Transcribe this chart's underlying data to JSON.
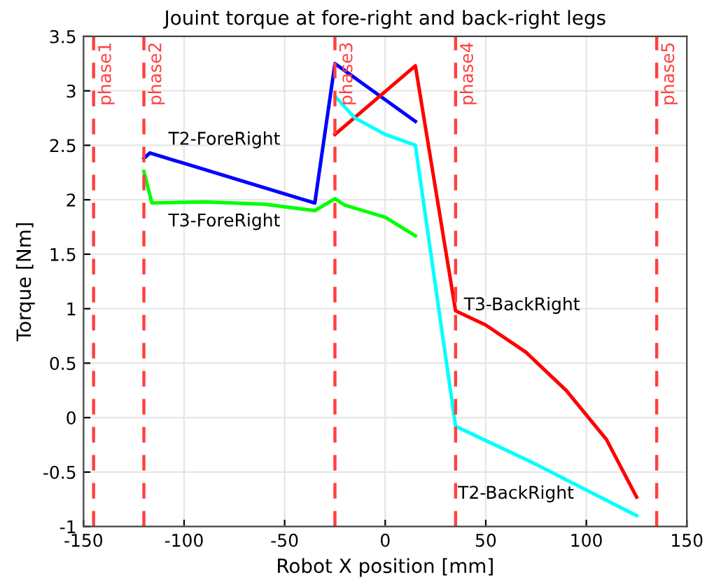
{
  "chart_data": {
    "type": "line",
    "title": "Jouint torque at fore-right and back-right legs",
    "xlabel": "Robot X position [mm]",
    "ylabel": "Torque [Nm]",
    "xlim": [
      -150,
      150
    ],
    "xticks": [
      -150,
      -100,
      -50,
      0,
      50,
      100,
      150
    ],
    "ylim": [
      -1,
      3.5
    ],
    "yticks": [
      -1,
      -0.5,
      0,
      0.5,
      1,
      1.5,
      2,
      2.5,
      3,
      3.5
    ],
    "grid": true,
    "line_style": "solid",
    "marker": "none",
    "series": [
      {
        "name": "T2-ForeRight",
        "color": "#0000ff",
        "x": [
          -120,
          -117,
          -35,
          -25,
          15
        ],
        "values": [
          2.38,
          2.43,
          1.97,
          3.25,
          2.72
        ]
      },
      {
        "name": "T3-ForeRight",
        "color": "#00ff00",
        "x": [
          -120,
          -116,
          -90,
          -60,
          -35,
          -25,
          -20,
          0,
          15
        ],
        "values": [
          2.26,
          1.97,
          1.98,
          1.96,
          1.9,
          2.01,
          1.95,
          1.84,
          1.67
        ]
      },
      {
        "name": "T3-BackRight",
        "color": "#ff0000",
        "x": [
          -25,
          15,
          35,
          50,
          70,
          90,
          110,
          125
        ],
        "values": [
          2.6,
          3.23,
          0.98,
          0.85,
          0.6,
          0.25,
          -0.2,
          -0.73
        ]
      },
      {
        "name": "T2-BackRight",
        "color": "#00ffff",
        "x": [
          -25,
          -15,
          0,
          15,
          35,
          73,
          125
        ],
        "values": [
          2.95,
          2.75,
          2.6,
          2.5,
          -0.08,
          -0.41,
          -0.9
        ]
      }
    ],
    "ref_lines": [
      {
        "axis": "x",
        "value": -145,
        "label": "phase1",
        "color": "#ff4040",
        "line_style": "dashed"
      },
      {
        "axis": "x",
        "value": -120,
        "label": "phase2",
        "color": "#ff4040",
        "line_style": "dashed"
      },
      {
        "axis": "x",
        "value": -25,
        "label": "phase3",
        "color": "#ff4040",
        "line_style": "dashed"
      },
      {
        "axis": "x",
        "value": 35,
        "label": "phase4",
        "color": "#ff4040",
        "line_style": "dashed"
      },
      {
        "axis": "x",
        "value": 135,
        "label": "phase5",
        "color": "#ff4040",
        "line_style": "dashed"
      }
    ]
  }
}
